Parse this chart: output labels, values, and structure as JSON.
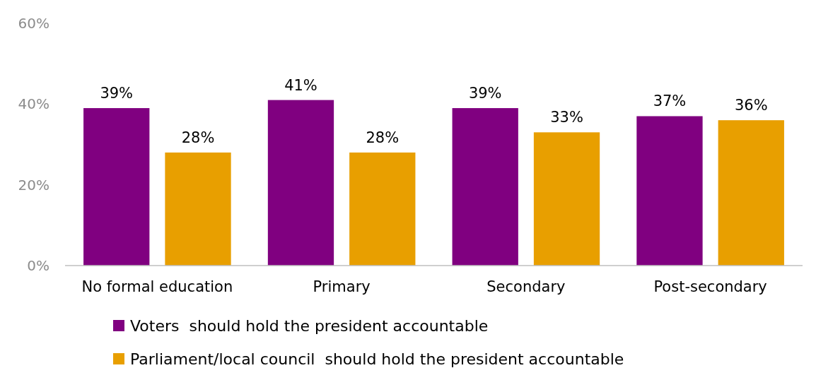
{
  "chart_data": {
    "type": "bar",
    "categories": [
      "No formal education",
      "Primary",
      "Secondary",
      "Post-secondary"
    ],
    "series": [
      {
        "name": "Voters  should hold the president accountable",
        "color": "#800080",
        "values": [
          39,
          41,
          39,
          37
        ],
        "value_labels": [
          "39%",
          "41%",
          "39%",
          "37%"
        ]
      },
      {
        "name": "Parliament/local council  should hold the president accountable",
        "color": "#e89f00",
        "values": [
          28,
          28,
          33,
          36
        ],
        "value_labels": [
          "28%",
          "28%",
          "33%",
          "36%"
        ]
      }
    ],
    "ylim": [
      0,
      60
    ],
    "yticks": [
      {
        "value": 0,
        "label": "0%"
      },
      {
        "value": 20,
        "label": "20%"
      },
      {
        "value": 40,
        "label": "40%"
      },
      {
        "value": 60,
        "label": "60%"
      }
    ],
    "legend": "bottom",
    "grid": false
  }
}
